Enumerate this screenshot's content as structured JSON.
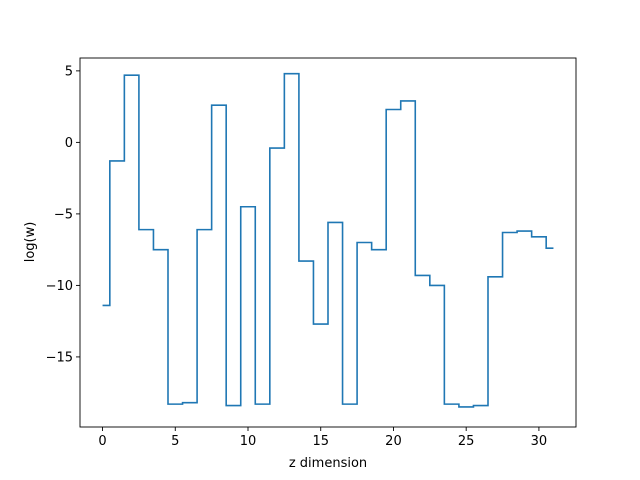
{
  "chart_data": {
    "type": "line",
    "drawstyle": "steps-mid",
    "title": "",
    "xlabel": "z dimension",
    "ylabel": "log(w)",
    "xlim": [
      -1.55,
      32.55
    ],
    "ylim": [
      -19.9,
      5.9
    ],
    "grid": false,
    "xticks": [
      0,
      5,
      10,
      15,
      20,
      25,
      30
    ],
    "yticks": [
      5,
      0,
      -5,
      -10,
      -15
    ],
    "ytick_labels": [
      "5",
      "0",
      "−5",
      "−10",
      "−15"
    ],
    "line_color": "#1f77b4",
    "series": [
      {
        "x": [
          0,
          1,
          2,
          3,
          4,
          5,
          6,
          7,
          8,
          9,
          10,
          11,
          12,
          13,
          14,
          15,
          16,
          17,
          18,
          19,
          20,
          21,
          22,
          23,
          24,
          25,
          26,
          27,
          28,
          29,
          30,
          31
        ],
        "values": [
          -11.4,
          -1.3,
          4.7,
          -6.1,
          -7.5,
          -18.3,
          -18.2,
          -6.1,
          2.6,
          -18.4,
          -4.5,
          -18.3,
          -0.4,
          4.8,
          -8.3,
          -12.7,
          -5.6,
          -18.3,
          -7.0,
          -7.5,
          2.3,
          2.9,
          -9.3,
          -10.0,
          -18.3,
          -18.5,
          -18.4,
          -9.4,
          -6.3,
          -6.2,
          -6.6,
          -7.4
        ]
      }
    ]
  }
}
